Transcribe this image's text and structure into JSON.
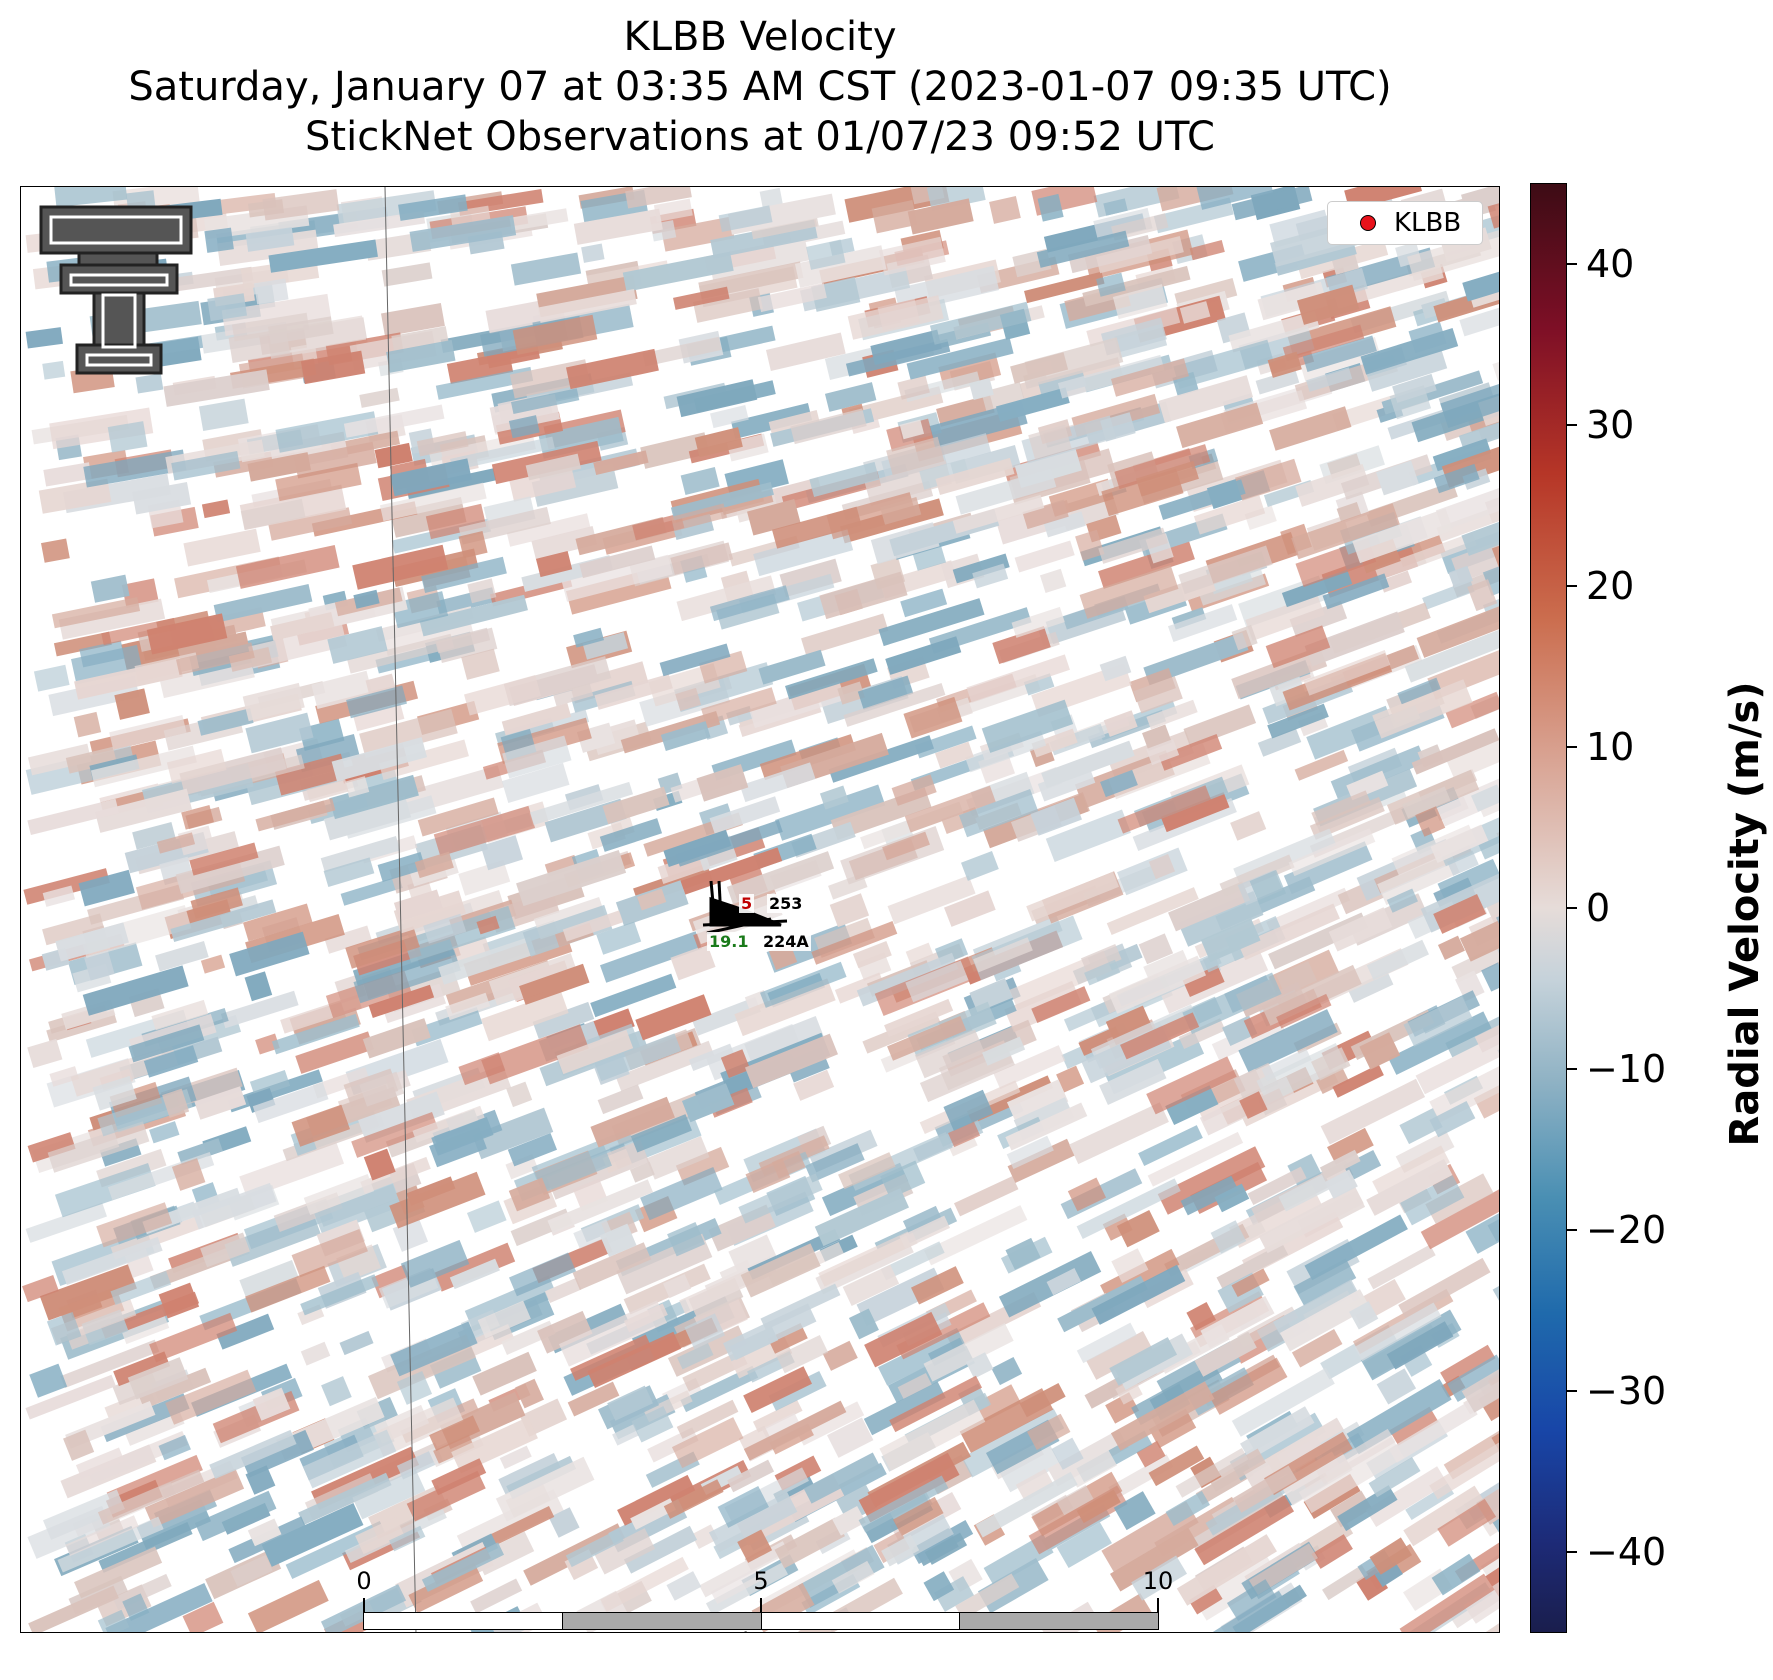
{
  "title": {
    "line1": "KLBB Velocity",
    "line2": "Saturday, January 07 at 03:35 AM CST (2023-01-07 09:35 UTC)",
    "line3": "StickNet Observations at 01/07/23 09:52 UTC"
  },
  "legend": {
    "label": "KLBB",
    "marker_color": "#e8121b"
  },
  "colorbar": {
    "label": "Radial Velocity (m/s)",
    "ticks": [
      "40",
      "30",
      "20",
      "10",
      "0",
      "−10",
      "−20",
      "−30",
      "−40"
    ],
    "range": [
      -45,
      45
    ]
  },
  "scale_bar": {
    "ticks": [
      "0",
      "5",
      "10"
    ],
    "unit": "km"
  },
  "stations": [
    {
      "id": "253",
      "value": "5",
      "value_color": "#c00000"
    },
    {
      "id": "224A",
      "value": "19.1",
      "value_color": "#1a7a1a"
    }
  ],
  "logo": {
    "name": "texas-tech-double-t-logo",
    "color": "#555555"
  }
}
